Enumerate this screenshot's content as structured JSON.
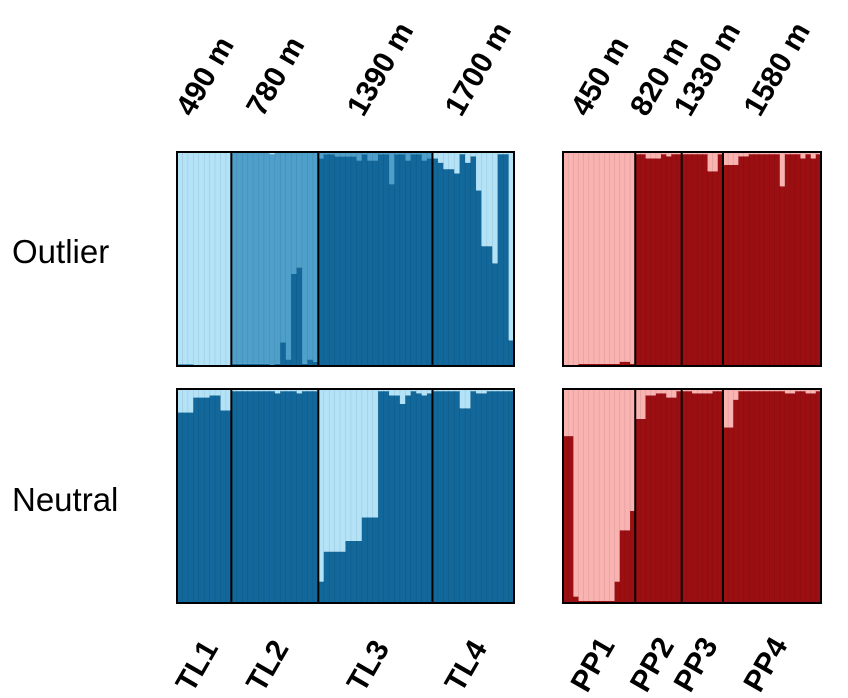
{
  "chart_data": {
    "type": "bar",
    "subtype": "stacked-proportion (STRUCTURE-style admixture plot)",
    "ylim": [
      0,
      1
    ],
    "rows": [
      "Outlier",
      "Neutral"
    ],
    "panels": [
      {
        "id": "TL",
        "colors": {
          "dark": "#12689a",
          "mid": "#4f9fcb",
          "light": "#b4e3f8"
        },
        "populations": [
          {
            "label": "TL1",
            "elevation": "490 m",
            "n": 10
          },
          {
            "label": "TL2",
            "elevation": "780 m",
            "n": 16
          },
          {
            "label": "TL3",
            "elevation": "1390 m",
            "n": 21
          },
          {
            "label": "TL4",
            "elevation": "1700 m",
            "n": 15
          }
        ],
        "outlier": {
          "TL1": [
            [
              0.0,
              0.01,
              0.99
            ],
            [
              0.0,
              0.01,
              0.99
            ],
            [
              0.0,
              0.01,
              0.99
            ],
            [
              0.0,
              0.0,
              1.0
            ],
            [
              0.0,
              0.0,
              1.0
            ],
            [
              0.0,
              0.0,
              1.0
            ],
            [
              0.0,
              0.0,
              1.0
            ],
            [
              0.0,
              0.0,
              1.0
            ],
            [
              0.0,
              0.0,
              1.0
            ],
            [
              0.0,
              0.0,
              1.0
            ]
          ],
          "TL2": [
            [
              0.01,
              0.99,
              0.0
            ],
            [
              0.01,
              0.99,
              0.0
            ],
            [
              0.01,
              0.99,
              0.0
            ],
            [
              0.01,
              0.99,
              0.0
            ],
            [
              0.01,
              0.99,
              0.0
            ],
            [
              0.01,
              0.99,
              0.0
            ],
            [
              0.01,
              0.99,
              0.0
            ],
            [
              0.0,
              0.99,
              0.01
            ],
            [
              0.01,
              0.99,
              0.0
            ],
            [
              0.11,
              0.89,
              0.0
            ],
            [
              0.03,
              0.97,
              0.0
            ],
            [
              0.43,
              0.57,
              0.0
            ],
            [
              0.46,
              0.54,
              0.0
            ],
            [
              0.01,
              0.99,
              0.0
            ],
            [
              0.03,
              0.97,
              0.0
            ],
            [
              0.02,
              0.98,
              0.0
            ]
          ],
          "TL3": [
            [
              0.97,
              0.03,
              0.0
            ],
            [
              0.99,
              0.01,
              0.0
            ],
            [
              0.99,
              0.01,
              0.0
            ],
            [
              0.98,
              0.02,
              0.0
            ],
            [
              0.98,
              0.02,
              0.0
            ],
            [
              0.98,
              0.02,
              0.0
            ],
            [
              0.98,
              0.02,
              0.0
            ],
            [
              0.96,
              0.04,
              0.0
            ],
            [
              0.99,
              0.01,
              0.0
            ],
            [
              0.96,
              0.04,
              0.0
            ],
            [
              0.96,
              0.04,
              0.0
            ],
            [
              0.99,
              0.01,
              0.0
            ],
            [
              0.99,
              0.01,
              0.0
            ],
            [
              0.85,
              0.15,
              0.0
            ],
            [
              0.99,
              0.01,
              0.0
            ],
            [
              0.99,
              0.01,
              0.0
            ],
            [
              0.96,
              0.04,
              0.0
            ],
            [
              0.99,
              0.01,
              0.0
            ],
            [
              0.99,
              0.01,
              0.0
            ],
            [
              0.96,
              0.04,
              0.0
            ],
            [
              0.97,
              0.03,
              0.0
            ]
          ],
          "TL4": [
            [
              0.97,
              0.0,
              0.03
            ],
            [
              0.95,
              0.0,
              0.05
            ],
            [
              0.92,
              0.0,
              0.08
            ],
            [
              0.92,
              0.0,
              0.08
            ],
            [
              0.9,
              0.0,
              0.1
            ],
            [
              0.99,
              0.0,
              0.01
            ],
            [
              0.95,
              0.0,
              0.05
            ],
            [
              0.98,
              0.0,
              0.02
            ],
            [
              0.82,
              0.0,
              0.18
            ],
            [
              0.56,
              0.0,
              0.44
            ],
            [
              0.56,
              0.0,
              0.44
            ],
            [
              0.48,
              0.0,
              0.52
            ],
            [
              0.99,
              0.0,
              0.01
            ],
            [
              0.99,
              0.0,
              0.01
            ],
            [
              0.12,
              0.0,
              0.88
            ]
          ]
        },
        "neutral": {
          "TL1": [
            [
              0.89,
              0.0,
              0.11
            ],
            [
              0.89,
              0.0,
              0.11
            ],
            [
              0.89,
              0.0,
              0.11
            ],
            [
              0.96,
              0.0,
              0.04
            ],
            [
              0.96,
              0.0,
              0.04
            ],
            [
              0.96,
              0.0,
              0.04
            ],
            [
              0.97,
              0.0,
              0.03
            ],
            [
              0.97,
              0.0,
              0.03
            ],
            [
              0.9,
              0.0,
              0.1
            ],
            [
              0.9,
              0.0,
              0.1
            ]
          ],
          "TL2": [
            [
              0.99,
              0.0,
              0.01
            ],
            [
              0.99,
              0.0,
              0.01
            ],
            [
              0.99,
              0.0,
              0.01
            ],
            [
              0.99,
              0.0,
              0.01
            ],
            [
              0.99,
              0.0,
              0.01
            ],
            [
              0.99,
              0.0,
              0.01
            ],
            [
              0.99,
              0.0,
              0.01
            ],
            [
              0.99,
              0.0,
              0.01
            ],
            [
              0.98,
              0.0,
              0.02
            ],
            [
              0.99,
              0.0,
              0.01
            ],
            [
              0.99,
              0.0,
              0.01
            ],
            [
              0.99,
              0.0,
              0.01
            ],
            [
              0.98,
              0.0,
              0.02
            ],
            [
              0.99,
              0.0,
              0.01
            ],
            [
              0.99,
              0.0,
              0.01
            ],
            [
              0.99,
              0.0,
              0.01
            ]
          ],
          "TL3": [
            [
              0.1,
              0.0,
              0.9
            ],
            [
              0.24,
              0.0,
              0.76
            ],
            [
              0.24,
              0.0,
              0.76
            ],
            [
              0.24,
              0.0,
              0.76
            ],
            [
              0.24,
              0.0,
              0.76
            ],
            [
              0.29,
              0.0,
              0.71
            ],
            [
              0.29,
              0.0,
              0.71
            ],
            [
              0.29,
              0.0,
              0.71
            ],
            [
              0.4,
              0.0,
              0.6
            ],
            [
              0.4,
              0.0,
              0.6
            ],
            [
              0.4,
              0.0,
              0.6
            ],
            [
              0.99,
              0.0,
              0.01
            ],
            [
              0.99,
              0.0,
              0.01
            ],
            [
              0.97,
              0.0,
              0.03
            ],
            [
              0.97,
              0.0,
              0.03
            ],
            [
              0.93,
              0.0,
              0.07
            ],
            [
              0.97,
              0.0,
              0.03
            ],
            [
              0.99,
              0.0,
              0.01
            ],
            [
              0.98,
              0.0,
              0.02
            ],
            [
              0.97,
              0.0,
              0.03
            ],
            [
              0.98,
              0.0,
              0.02
            ]
          ],
          "TL4": [
            [
              0.99,
              0.0,
              0.01
            ],
            [
              0.99,
              0.0,
              0.01
            ],
            [
              0.99,
              0.0,
              0.01
            ],
            [
              0.99,
              0.0,
              0.01
            ],
            [
              0.99,
              0.0,
              0.01
            ],
            [
              0.91,
              0.0,
              0.09
            ],
            [
              0.91,
              0.0,
              0.09
            ],
            [
              0.99,
              0.0,
              0.01
            ],
            [
              0.98,
              0.0,
              0.02
            ],
            [
              0.98,
              0.0,
              0.02
            ],
            [
              0.99,
              0.0,
              0.01
            ],
            [
              0.99,
              0.0,
              0.01
            ],
            [
              0.99,
              0.0,
              0.01
            ],
            [
              0.99,
              0.0,
              0.01
            ],
            [
              0.99,
              0.0,
              0.01
            ]
          ]
        }
      },
      {
        "id": "PP",
        "colors": {
          "dark": "#9b0f12",
          "light": "#f9b3b1"
        },
        "populations": [
          {
            "label": "PP1",
            "elevation": "450 m",
            "n": 14
          },
          {
            "label": "PP2",
            "elevation": "820 m",
            "n": 9
          },
          {
            "label": "PP3",
            "elevation": "1330 m",
            "n": 8
          },
          {
            "label": "PP4",
            "elevation": "1580 m",
            "n": 19
          }
        ],
        "outlier": {
          "PP1": [
            [
              0.0,
              1.0
            ],
            [
              0.0,
              1.0
            ],
            [
              0.0,
              1.0
            ],
            [
              0.01,
              0.99
            ],
            [
              0.01,
              0.99
            ],
            [
              0.01,
              0.99
            ],
            [
              0.01,
              0.99
            ],
            [
              0.01,
              0.99
            ],
            [
              0.01,
              0.99
            ],
            [
              0.01,
              0.99
            ],
            [
              0.01,
              0.99
            ],
            [
              0.02,
              0.98
            ],
            [
              0.02,
              0.98
            ],
            [
              0.01,
              0.99
            ]
          ],
          "PP2": [
            [
              0.99,
              0.01
            ],
            [
              0.99,
              0.01
            ],
            [
              0.97,
              0.03
            ],
            [
              0.97,
              0.03
            ],
            [
              0.97,
              0.03
            ],
            [
              0.99,
              0.01
            ],
            [
              0.98,
              0.02
            ],
            [
              0.99,
              0.01
            ],
            [
              0.99,
              0.01
            ]
          ],
          "PP3": [
            [
              0.99,
              0.01
            ],
            [
              0.99,
              0.01
            ],
            [
              0.99,
              0.01
            ],
            [
              0.99,
              0.01
            ],
            [
              0.99,
              0.01
            ],
            [
              0.91,
              0.09
            ],
            [
              0.91,
              0.09
            ],
            [
              0.99,
              0.01
            ]
          ],
          "PP4": [
            [
              0.94,
              0.06
            ],
            [
              0.94,
              0.06
            ],
            [
              0.94,
              0.06
            ],
            [
              0.98,
              0.02
            ],
            [
              0.98,
              0.02
            ],
            [
              0.99,
              0.01
            ],
            [
              0.99,
              0.01
            ],
            [
              0.99,
              0.01
            ],
            [
              0.99,
              0.01
            ],
            [
              0.99,
              0.01
            ],
            [
              0.99,
              0.01
            ],
            [
              0.84,
              0.16
            ],
            [
              0.99,
              0.01
            ],
            [
              0.99,
              0.01
            ],
            [
              0.99,
              0.01
            ],
            [
              0.97,
              0.03
            ],
            [
              0.99,
              0.01
            ],
            [
              0.97,
              0.03
            ],
            [
              0.99,
              0.01
            ]
          ]
        },
        "neutral": {
          "PP1": [
            [
              0.78,
              0.22
            ],
            [
              0.78,
              0.22
            ],
            [
              0.03,
              0.97
            ],
            [
              0.01,
              0.99
            ],
            [
              0.01,
              0.99
            ],
            [
              0.01,
              0.99
            ],
            [
              0.01,
              0.99
            ],
            [
              0.01,
              0.99
            ],
            [
              0.01,
              0.99
            ],
            [
              0.01,
              0.99
            ],
            [
              0.1,
              0.9
            ],
            [
              0.34,
              0.66
            ],
            [
              0.34,
              0.66
            ],
            [
              0.43,
              0.57
            ]
          ],
          "PP2": [
            [
              0.86,
              0.14
            ],
            [
              0.86,
              0.14
            ],
            [
              0.97,
              0.03
            ],
            [
              0.97,
              0.03
            ],
            [
              0.98,
              0.02
            ],
            [
              0.98,
              0.02
            ],
            [
              0.96,
              0.04
            ],
            [
              0.96,
              0.04
            ],
            [
              0.99,
              0.01
            ]
          ],
          "PP3": [
            [
              0.99,
              0.01
            ],
            [
              0.99,
              0.01
            ],
            [
              0.98,
              0.02
            ],
            [
              0.98,
              0.02
            ],
            [
              0.98,
              0.02
            ],
            [
              0.98,
              0.02
            ],
            [
              0.99,
              0.01
            ],
            [
              0.99,
              0.01
            ]
          ],
          "PP4": [
            [
              0.82,
              0.18
            ],
            [
              0.82,
              0.18
            ],
            [
              0.95,
              0.05
            ],
            [
              0.99,
              0.01
            ],
            [
              0.99,
              0.01
            ],
            [
              0.99,
              0.01
            ],
            [
              0.99,
              0.01
            ],
            [
              0.99,
              0.01
            ],
            [
              0.99,
              0.01
            ],
            [
              0.99,
              0.01
            ],
            [
              0.99,
              0.01
            ],
            [
              0.99,
              0.01
            ],
            [
              0.98,
              0.02
            ],
            [
              0.98,
              0.02
            ],
            [
              0.99,
              0.01
            ],
            [
              0.99,
              0.01
            ],
            [
              0.98,
              0.02
            ],
            [
              0.98,
              0.02
            ],
            [
              0.99,
              0.01
            ]
          ]
        }
      }
    ]
  }
}
